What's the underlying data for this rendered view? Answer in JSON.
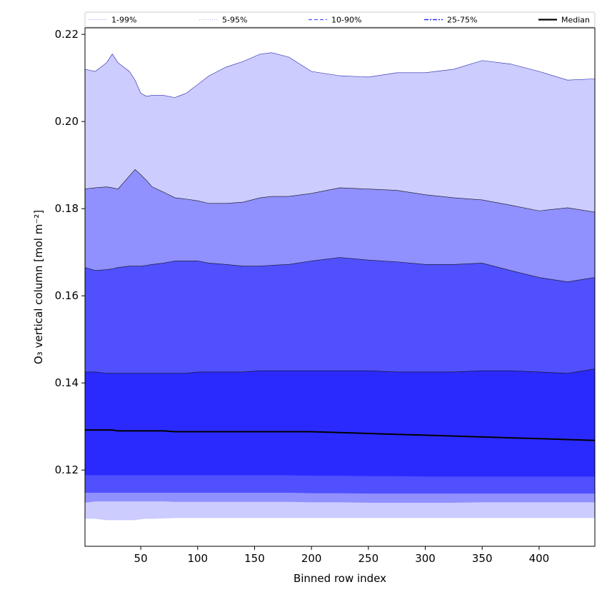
{
  "chart_data": {
    "type": "area",
    "xlabel": "Binned row index",
    "ylabel": "O₃ vertical column [mol m⁻²]",
    "xlim": [
      1,
      449
    ],
    "ylim": [
      0.1025,
      0.2215
    ],
    "xticks": [
      50,
      100,
      150,
      200,
      250,
      300,
      350,
      400
    ],
    "yticks": [
      0.12,
      0.14,
      0.16,
      0.18,
      0.2,
      0.22
    ],
    "ytick_labels": [
      "0.12",
      "0.14",
      "0.16",
      "0.18",
      "0.20",
      "0.22"
    ],
    "legend_position": "top (above plot)",
    "x": [
      1,
      10,
      20,
      25,
      30,
      40,
      45,
      50,
      55,
      60,
      70,
      80,
      90,
      100,
      110,
      125,
      140,
      155,
      165,
      180,
      200,
      225,
      250,
      275,
      300,
      325,
      350,
      375,
      400,
      425,
      449
    ],
    "bands": [
      {
        "name": "1-99%",
        "color": "#ccccff",
        "upper": [
          0.212,
          0.2115,
          0.2135,
          0.2155,
          0.2135,
          0.2115,
          0.2095,
          0.2065,
          0.2058,
          0.206,
          0.206,
          0.2055,
          0.2065,
          0.2085,
          0.2105,
          0.2125,
          0.2138,
          0.2155,
          0.2158,
          0.2148,
          0.2115,
          0.2105,
          0.2102,
          0.2112,
          0.2112,
          0.212,
          0.214,
          0.2132,
          0.2115,
          0.2095,
          0.2098
        ],
        "lower": [
          0.1088,
          0.1088,
          0.1085,
          0.1085,
          0.1085,
          0.1085,
          0.1085,
          0.1087,
          0.1088,
          0.1088,
          0.1089,
          0.109,
          0.109,
          0.109,
          0.109,
          0.109,
          0.109,
          0.109,
          0.109,
          0.109,
          0.109,
          0.109,
          0.109,
          0.109,
          0.109,
          0.109,
          0.109,
          0.109,
          0.109,
          0.109,
          0.109
        ]
      },
      {
        "name": "5-95%",
        "color": "#9090ff",
        "upper": [
          0.1845,
          0.1848,
          0.185,
          0.1848,
          0.1845,
          0.1875,
          0.189,
          0.1878,
          0.1865,
          0.185,
          0.1838,
          0.1825,
          0.1822,
          0.1818,
          0.1812,
          0.1812,
          0.1815,
          0.1825,
          0.1828,
          0.1828,
          0.1835,
          0.1848,
          0.1845,
          0.1842,
          0.1832,
          0.1825,
          0.182,
          0.1808,
          0.1795,
          0.1802,
          0.1792
        ],
        "lower": [
          0.1125,
          0.1128,
          0.1128,
          0.1128,
          0.1128,
          0.1128,
          0.1128,
          0.1128,
          0.1128,
          0.1128,
          0.1128,
          0.1127,
          0.1127,
          0.1127,
          0.1127,
          0.1127,
          0.1127,
          0.1127,
          0.1127,
          0.1127,
          0.1126,
          0.1126,
          0.1125,
          0.1125,
          0.1125,
          0.1125,
          0.1126,
          0.1126,
          0.1126,
          0.1126,
          0.1126
        ]
      },
      {
        "name": "10-90%",
        "color": "#5050ff",
        "upper": [
          0.1665,
          0.1658,
          0.166,
          0.1662,
          0.1665,
          0.1668,
          0.1668,
          0.1668,
          0.167,
          0.1672,
          0.1675,
          0.168,
          0.168,
          0.168,
          0.1675,
          0.1672,
          0.1668,
          0.1668,
          0.167,
          0.1672,
          0.168,
          0.1688,
          0.1682,
          0.1678,
          0.1672,
          0.1672,
          0.1675,
          0.1658,
          0.1642,
          0.1632,
          0.1642
        ],
        "lower": [
          0.1148,
          0.1148,
          0.1148,
          0.1148,
          0.1148,
          0.1148,
          0.1148,
          0.1148,
          0.1148,
          0.1148,
          0.1148,
          0.1148,
          0.1148,
          0.1148,
          0.1148,
          0.1148,
          0.1148,
          0.1148,
          0.1148,
          0.1148,
          0.1147,
          0.1147,
          0.1146,
          0.1146,
          0.1146,
          0.1146,
          0.1146,
          0.1146,
          0.1146,
          0.1146,
          0.1146
        ]
      },
      {
        "name": "25-75%",
        "color": "#2a2aff",
        "upper": [
          0.1425,
          0.1425,
          0.1422,
          0.1422,
          0.1422,
          0.1422,
          0.1422,
          0.1422,
          0.1422,
          0.1422,
          0.1422,
          0.1422,
          0.1422,
          0.1425,
          0.1425,
          0.1425,
          0.1425,
          0.1428,
          0.1428,
          0.1428,
          0.1428,
          0.1428,
          0.1428,
          0.1425,
          0.1425,
          0.1425,
          0.1428,
          0.1428,
          0.1425,
          0.1422,
          0.1432
        ],
        "lower": [
          0.1188,
          0.1188,
          0.1188,
          0.1188,
          0.1188,
          0.1188,
          0.1188,
          0.1188,
          0.1188,
          0.1188,
          0.1188,
          0.1188,
          0.1188,
          0.1188,
          0.1188,
          0.1188,
          0.1188,
          0.1188,
          0.1188,
          0.1188,
          0.1187,
          0.1187,
          0.1186,
          0.1186,
          0.1185,
          0.1185,
          0.1185,
          0.1185,
          0.1185,
          0.1185,
          0.1185
        ]
      }
    ],
    "median": {
      "name": "Median",
      "color": "#000000",
      "values": [
        0.1292,
        0.1292,
        0.1292,
        0.1292,
        0.129,
        0.129,
        0.129,
        0.129,
        0.129,
        0.129,
        0.129,
        0.1288,
        0.1288,
        0.1288,
        0.1288,
        0.1288,
        0.1288,
        0.1288,
        0.1288,
        0.1288,
        0.1288,
        0.1286,
        0.1284,
        0.1282,
        0.128,
        0.1278,
        0.1276,
        0.1274,
        0.1272,
        0.127,
        0.1268
      ]
    },
    "legend": [
      {
        "label": "1-99%",
        "style": "solid-thin",
        "color": "#ccccff"
      },
      {
        "label": "5-95%",
        "style": "dotted-thin",
        "color": "#9090ff"
      },
      {
        "label": "10-90%",
        "style": "dashed",
        "color": "#5050ff"
      },
      {
        "label": "25-75%",
        "style": "dashdot",
        "color": "#2a2aff"
      },
      {
        "label": "Median",
        "style": "solid-thick",
        "color": "#000000"
      }
    ]
  }
}
